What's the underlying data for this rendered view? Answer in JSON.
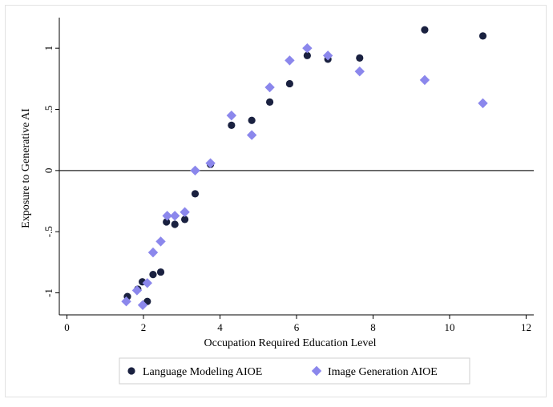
{
  "chart_data": {
    "type": "scatter",
    "title": "",
    "xlabel": "Occupation Required Education Level",
    "ylabel": "Exposure to Generative AI",
    "xlim": [
      -0.2,
      12.2
    ],
    "ylim": [
      -1.18,
      1.25
    ],
    "x_ticks": [
      0,
      2,
      4,
      6,
      8,
      10,
      12
    ],
    "x_tick_labels": [
      "0",
      "2",
      "4",
      "6",
      "8",
      "10",
      "12"
    ],
    "y_ticks": [
      -1,
      -0.5,
      0,
      0.5,
      1
    ],
    "y_tick_labels": [
      "-1",
      "-.5",
      "0",
      ".5",
      "1"
    ],
    "reference_line_y": 0,
    "grid": false,
    "legend_position": "bottom",
    "series": [
      {
        "name": "Language Modeling AIOE",
        "marker": "circle",
        "color": "#1a2140",
        "points": [
          {
            "x": 1.58,
            "y": -1.03
          },
          {
            "x": 1.85,
            "y": -0.97
          },
          {
            "x": 1.97,
            "y": -0.91
          },
          {
            "x": 2.1,
            "y": -1.07
          },
          {
            "x": 2.25,
            "y": -0.85
          },
          {
            "x": 2.45,
            "y": -0.83
          },
          {
            "x": 2.6,
            "y": -0.42
          },
          {
            "x": 2.82,
            "y": -0.44
          },
          {
            "x": 3.08,
            "y": -0.4
          },
          {
            "x": 3.35,
            "y": -0.19
          },
          {
            "x": 3.75,
            "y": 0.05
          },
          {
            "x": 4.3,
            "y": 0.37
          },
          {
            "x": 4.83,
            "y": 0.41
          },
          {
            "x": 5.3,
            "y": 0.56
          },
          {
            "x": 5.82,
            "y": 0.71
          },
          {
            "x": 6.28,
            "y": 0.94
          },
          {
            "x": 6.82,
            "y": 0.91
          },
          {
            "x": 7.65,
            "y": 0.92
          },
          {
            "x": 9.35,
            "y": 1.15
          },
          {
            "x": 10.87,
            "y": 1.1
          }
        ]
      },
      {
        "name": "Image Generation AIOE",
        "marker": "diamond",
        "color": "#8b87ec",
        "points": [
          {
            "x": 1.55,
            "y": -1.07
          },
          {
            "x": 1.83,
            "y": -0.98
          },
          {
            "x": 1.98,
            "y": -1.1
          },
          {
            "x": 2.1,
            "y": -0.92
          },
          {
            "x": 2.25,
            "y": -0.67
          },
          {
            "x": 2.45,
            "y": -0.58
          },
          {
            "x": 2.62,
            "y": -0.37
          },
          {
            "x": 2.82,
            "y": -0.37
          },
          {
            "x": 3.08,
            "y": -0.34
          },
          {
            "x": 3.35,
            "y": 0.0
          },
          {
            "x": 3.75,
            "y": 0.06
          },
          {
            "x": 4.3,
            "y": 0.45
          },
          {
            "x": 4.83,
            "y": 0.29
          },
          {
            "x": 5.3,
            "y": 0.68
          },
          {
            "x": 5.82,
            "y": 0.9
          },
          {
            "x": 6.28,
            "y": 1.0
          },
          {
            "x": 6.82,
            "y": 0.94
          },
          {
            "x": 7.65,
            "y": 0.81
          },
          {
            "x": 9.35,
            "y": 0.74
          },
          {
            "x": 10.87,
            "y": 0.55
          }
        ]
      }
    ]
  }
}
